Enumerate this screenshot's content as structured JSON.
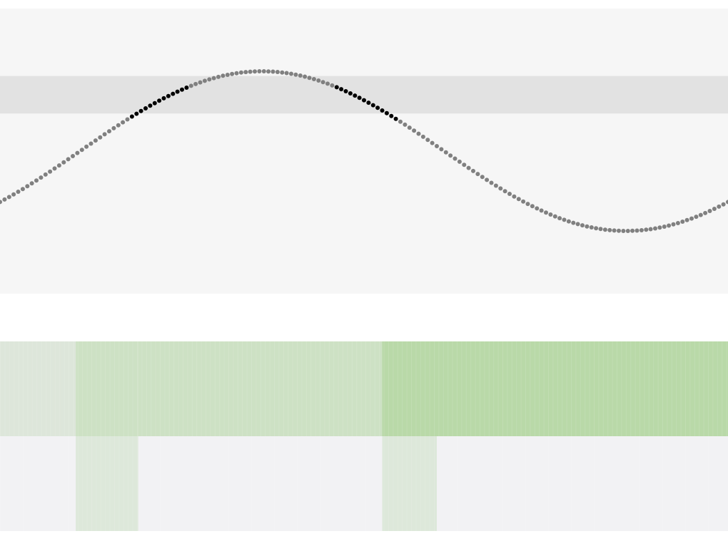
{
  "chart_data": [
    {
      "type": "scatter",
      "title": "",
      "xlabel": "",
      "ylabel": "",
      "grid": false,
      "legend": "none",
      "xlim": [
        0,
        1
      ],
      "ylim": [
        -1.2,
        1.2
      ],
      "band": [
        0.4,
        0.8
      ],
      "function": "sin",
      "cycles": 1.15,
      "phase": 0.45,
      "amplitude": 1,
      "n_points": 160,
      "colors": {
        "background": "#f6f6f6",
        "band": "#e2e2e2",
        "point": "#808080",
        "point_highlight": "#000000"
      }
    },
    {
      "type": "heatmap",
      "title": "",
      "rows": 2,
      "segments": [
        {
          "to": 0.104,
          "row1": "#dde6da",
          "row2": "#f2f2f4"
        },
        {
          "to": 0.19,
          "row1": "#cde1c4",
          "row2": "#dde8da"
        },
        {
          "to": 0.525,
          "row1": "#cde1c4",
          "row2": "#f2f2f4"
        },
        {
          "to": 0.6,
          "row1": "#b9d9a8",
          "row2": "#dde8da"
        },
        {
          "to": 1.0,
          "row1": "#b9d9a8",
          "row2": "#f2f2f4"
        }
      ],
      "colors": {
        "stripe": "#ffffff"
      }
    }
  ]
}
